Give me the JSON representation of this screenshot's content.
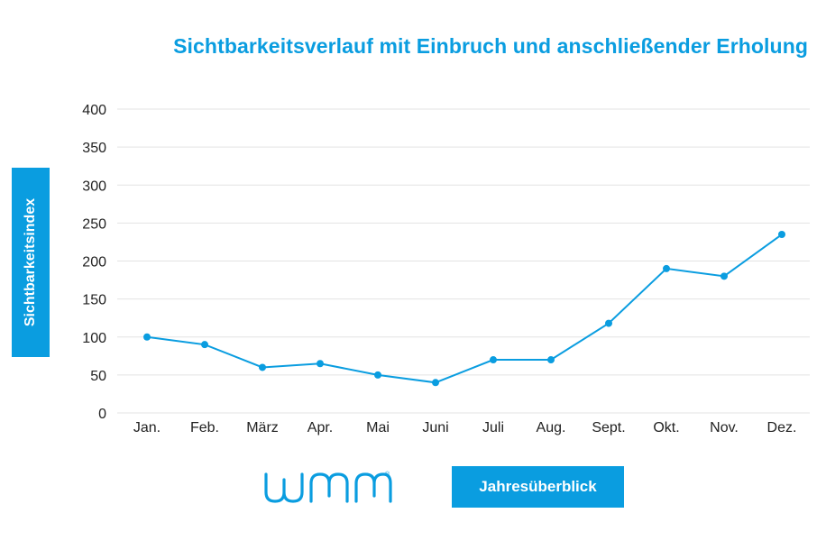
{
  "chart_data": {
    "type": "line",
    "title": "Sichtbarkeitsverlauf mit Einbruch und anschließender Erholung",
    "xlabel": "Jahresüberblick",
    "ylabel": "Sichtbarkeitsindex",
    "categories": [
      "Jan.",
      "Feb.",
      "März",
      "Apr.",
      "Mai",
      "Juni",
      "Juli",
      "Aug.",
      "Sept.",
      "Okt.",
      "Nov.",
      "Dez."
    ],
    "series": [
      {
        "values": [
          100,
          90,
          60,
          65,
          50,
          40,
          70,
          70,
          118,
          190,
          180,
          235
        ]
      }
    ],
    "ylim": [
      0,
      400
    ],
    "yticks": [
      0,
      50,
      100,
      150,
      200,
      250,
      300,
      350,
      400
    ],
    "grid": true,
    "legend": "none",
    "colors": {
      "accent": "#0a9de0",
      "grid": "#e3e3e3"
    }
  },
  "logo": {
    "icon": "wmm-logo-icon",
    "registered": "®"
  }
}
